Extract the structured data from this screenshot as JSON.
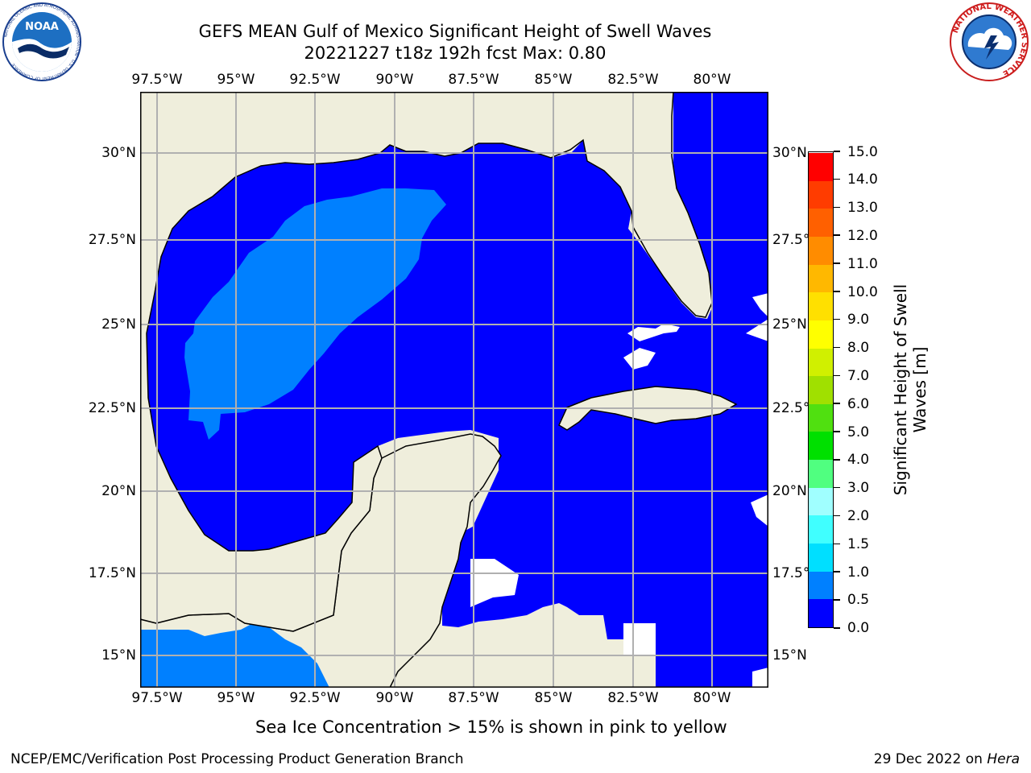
{
  "title_line1": "GEFS MEAN Gulf of Mexico Significant Height of Swell Waves",
  "title_line2": "20221227 t18z 192h fcst   Max: 0.80",
  "lon_ticks": [
    "97.5°W",
    "95°W",
    "92.5°W",
    "90°W",
    "87.5°W",
    "85°W",
    "82.5°W",
    "80°W"
  ],
  "lat_ticks": [
    "30°N",
    "27.5°N",
    "25°N",
    "22.5°N",
    "20°N",
    "17.5°N",
    "15°N"
  ],
  "colorbar": {
    "label": "Significant Height of Swell Waves [m]",
    "label_line1": "Significant Height of Swell",
    "label_line2": "Waves [m]",
    "ticks": [
      "0.0",
      "0.5",
      "1.0",
      "1.5",
      "2.0",
      "3.0",
      "4.0",
      "5.0",
      "6.0",
      "7.0",
      "8.0",
      "9.0",
      "10.0",
      "11.0",
      "12.0",
      "13.0",
      "14.0",
      "15.0"
    ],
    "colors": [
      "#0000ff",
      "#0080ff",
      "#00dfff",
      "#40ffff",
      "#a0ffff",
      "#50ff80",
      "#00e000",
      "#50e010",
      "#a0e000",
      "#d0f000",
      "#ffff00",
      "#ffe000",
      "#ffb800",
      "#ff8c00",
      "#ff6000",
      "#ff3c00",
      "#ff0000"
    ]
  },
  "colors": {
    "land": "#efeedc",
    "coast": "#000000",
    "grid": "#b0b0b0",
    "ocean_low": "#0000ff",
    "ocean_mid": "#0080ff",
    "no_data": "#ffffff"
  },
  "caption": "Sea Ice Concentration > 15% is shown in pink to yellow",
  "footer_left": "NCEP/EMC/Verification Post Processing Product Generation Branch",
  "footer_date": "29 Dec 2022 on ",
  "footer_host": "Hera",
  "logo_left": "NOAA",
  "logo_left_ring": "NATIONAL OCEANIC AND ATMOSPHERIC ADMINISTRATION · U.S. DEPARTMENT OF COMMERCE",
  "logo_right_ring": "NATIONAL WEATHER SERVICE"
}
